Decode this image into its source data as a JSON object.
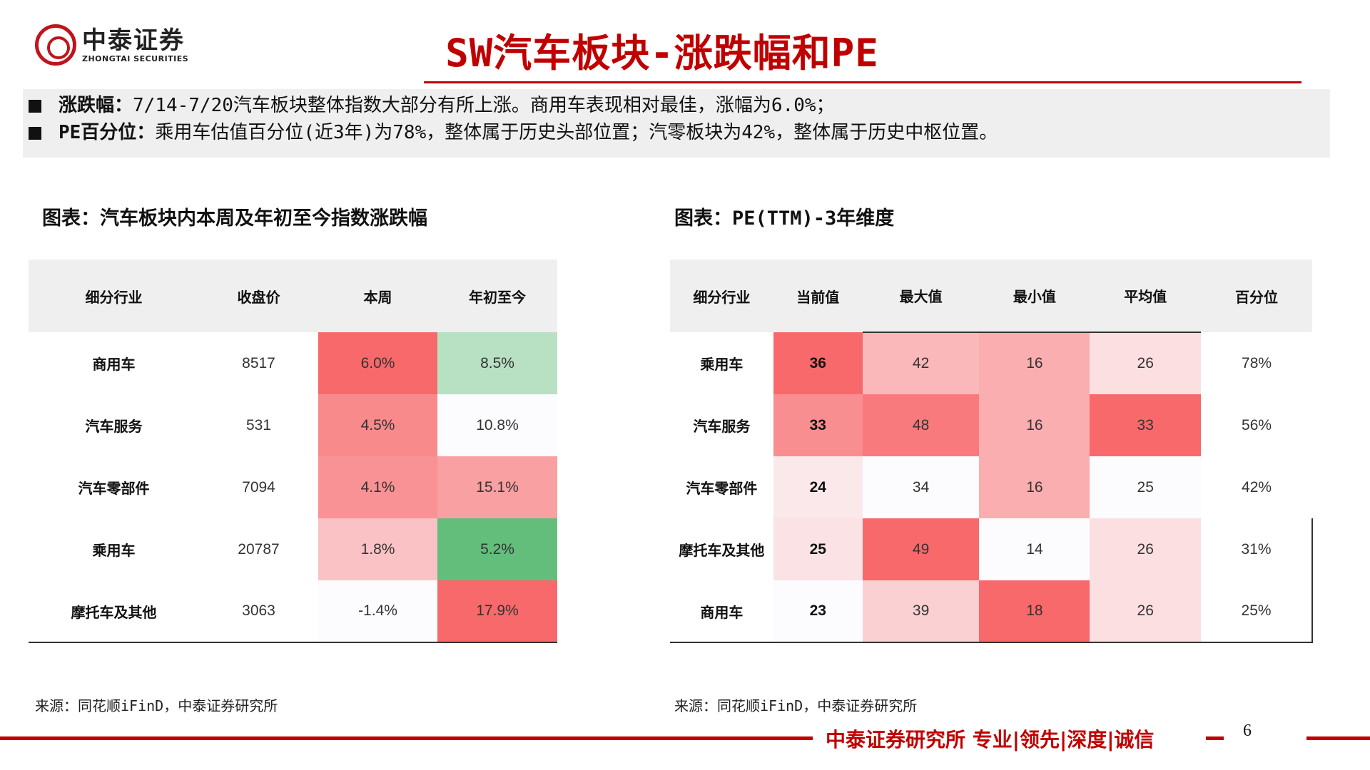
{
  "logo": {
    "cn": "中泰证券",
    "en": "ZHONGTAI SECURITIES"
  },
  "title": "SW汽车板块-涨跌幅和PE",
  "summary": [
    {
      "label": "涨跌幅：",
      "text": "7/14-7/20汽车板块整体指数大部分有所上涨。商用车表现相对最佳，涨幅为6.0%；"
    },
    {
      "label": "PE百分位：",
      "text": "乘用车估值百分位(近3年)为78%，整体属于历史头部位置；汽零板块为42%，整体属于历史中枢位置。"
    }
  ],
  "left_chart": {
    "title": "图表：汽车板块内本周及年初至今指数涨跌幅",
    "headers": [
      "细分行业",
      "收盘价",
      "本周",
      "年初至今"
    ],
    "rows": [
      {
        "name": "商用车",
        "close": "8517",
        "week": "6.0%",
        "week_color": "#f8696b",
        "ytd": "8.5%",
        "ytd_color": "#b8e0c3"
      },
      {
        "name": "汽车服务",
        "close": "531",
        "week": "4.5%",
        "week_color": "#f98a8c",
        "ytd": "10.8%",
        "ytd_color": "#fcfcff"
      },
      {
        "name": "汽车零部件",
        "close": "7094",
        "week": "4.1%",
        "week_color": "#f99294",
        "ytd": "15.1%",
        "ytd_color": "#f9a0a2"
      },
      {
        "name": "乘用车",
        "close": "20787",
        "week": "1.8%",
        "week_color": "#fbc2c5",
        "ytd": "5.2%",
        "ytd_color": "#63be7b"
      },
      {
        "name": "摩托车及其他",
        "close": "3063",
        "week": "-1.4%",
        "week_color": "#fcfcff",
        "ytd": "17.9%",
        "ytd_color": "#f8696b"
      }
    ],
    "source": "来源：同花顺iFinD，中泰证券研究所"
  },
  "right_chart": {
    "title": "图表：PE(TTM)-3年维度",
    "headers": [
      "细分行业",
      "当前值",
      "最大值",
      "最小值",
      "平均值",
      "百分位"
    ],
    "rows": [
      {
        "name": "乘用车",
        "vals": [
          "36",
          "42",
          "16",
          "26"
        ],
        "colors": [
          "#f8696b",
          "#fab8ba",
          "#faaeb0",
          "#fbdfe1"
        ],
        "pct": "78%"
      },
      {
        "name": "汽车服务",
        "vals": [
          "33",
          "48",
          "16",
          "33"
        ],
        "colors": [
          "#f98e90",
          "#f87a7c",
          "#faaeb0",
          "#f8696b"
        ],
        "pct": "56%"
      },
      {
        "name": "汽车零部件",
        "vals": [
          "24",
          "34",
          "16",
          "25"
        ],
        "colors": [
          "#fbe8ea",
          "#fcfcff",
          "#faaeb0",
          "#fcfcff"
        ],
        "pct": "42%"
      },
      {
        "name": "摩托车及其他",
        "vals": [
          "25",
          "49",
          "14",
          "26"
        ],
        "colors": [
          "#fbe3e5",
          "#f8696b",
          "#fcfcff",
          "#fbdfe1"
        ],
        "pct": "31%"
      },
      {
        "name": "商用车",
        "vals": [
          "23",
          "39",
          "18",
          "26"
        ],
        "colors": [
          "#fcfcff",
          "#fad0d2",
          "#f8696b",
          "#fbdfe1"
        ],
        "pct": "25%"
      }
    ],
    "source": "来源：同花顺iFinD，中泰证券研究所"
  },
  "footer": {
    "slogan": "中泰证券研究所 专业|领先|深度|诚信",
    "page": "6"
  }
}
